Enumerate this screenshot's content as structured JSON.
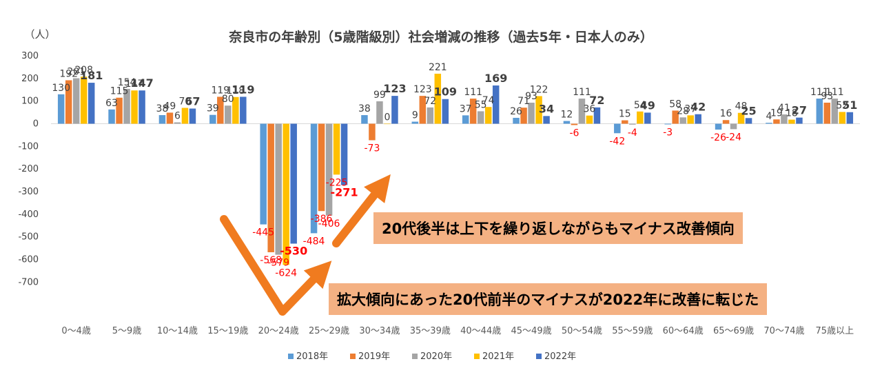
{
  "chart_data": {
    "type": "bar",
    "title": "奈良市の年齢別（5歳階級別）社会増減の推移（過去5年・日本人のみ）",
    "ylabel": "（人）",
    "ylim": [
      -700,
      300
    ],
    "yticks": [
      300,
      200,
      100,
      0,
      -100,
      -200,
      -300,
      -400,
      -500,
      -600,
      -700
    ],
    "categories": [
      "0～4歳",
      "5～9歳",
      "10～14歳",
      "15～19歳",
      "20～24歳",
      "25～29歳",
      "30～34歳",
      "35～39歳",
      "40～44歳",
      "45～49歳",
      "50～54歳",
      "55～59歳",
      "60～64歳",
      "65～69歳",
      "70～74歳",
      "75歳以上"
    ],
    "series": [
      {
        "name": "2018年",
        "color": "#5b9bd5",
        "values": [
          130,
          63,
          38,
          39,
          -445,
          -484,
          38,
          9,
          37,
          26,
          12,
          -42,
          -3,
          -26,
          4,
          111
        ]
      },
      {
        "name": "2019年",
        "color": "#ed7d31",
        "values": [
          192,
          115,
          49,
          119,
          -568,
          -386,
          -73,
          123,
          111,
          71,
          -6,
          15,
          58,
          16,
          19,
          93
        ]
      },
      {
        "name": "2020年",
        "color": "#a5a5a5",
        "values": [
          201,
          154,
          6,
          80,
          -579,
          -406,
          99,
          72,
          55,
          93,
          111,
          -4,
          28,
          -24,
          41,
          111
        ]
      },
      {
        "name": "2021年",
        "color": "#ffc000",
        "values": [
          208,
          147,
          70,
          118,
          -624,
          -225,
          0,
          221,
          74,
          122,
          36,
          54,
          37,
          48,
          18,
          52
        ]
      },
      {
        "name": "2022年",
        "color": "#4472c4",
        "values": [
          181,
          147,
          67,
          119,
          -530,
          -271,
          123,
          109,
          169,
          34,
          72,
          49,
          42,
          25,
          27,
          51
        ]
      }
    ],
    "legend": "bottom",
    "annotations": [
      "20代後半は上下を繰り返しながらもマイナス改善傾向",
      "拡大傾向にあった20代前半のマイナスが2022年に改善に転じた"
    ]
  }
}
